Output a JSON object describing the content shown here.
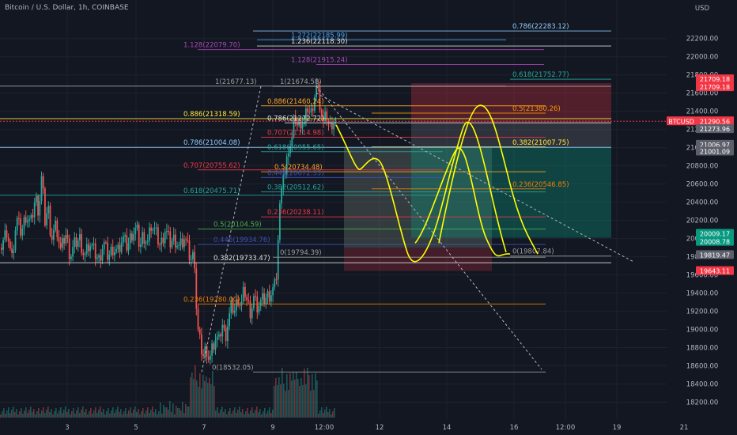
{
  "title": "Bitcoin / U.S. Dollar, 1h, COINBASE",
  "currency": "USD",
  "chart_data": {
    "type": "candlestick",
    "symbol": "BTCUSD",
    "ylim": [
      18100,
      22450
    ],
    "y_ticks": [
      "22200.00",
      "22000.00",
      "21800.00",
      "21600.00",
      "21400.00",
      "21200.00",
      "21000.00",
      "20800.00",
      "20600.00",
      "20400.00",
      "20200.00",
      "20000.00",
      "19800.00",
      "19600.00",
      "19400.00",
      "19200.00",
      "19000.00",
      "18800.00",
      "18600.00",
      "18400.00",
      "18200.00"
    ],
    "x_ticks": [
      "3",
      "5",
      "7",
      "9",
      "12:00",
      "12",
      "14",
      "16",
      "12:00",
      "19",
      "21"
    ],
    "price_path": [
      [
        0,
        19900
      ],
      [
        8,
        20100
      ],
      [
        14,
        19750
      ],
      [
        20,
        20200
      ],
      [
        26,
        20050
      ],
      [
        32,
        20250
      ],
      [
        38,
        20150
      ],
      [
        44,
        20450
      ],
      [
        48,
        20300
      ],
      [
        52,
        20700
      ],
      [
        56,
        20200
      ],
      [
        60,
        20350
      ],
      [
        64,
        20000
      ],
      [
        70,
        20150
      ],
      [
        76,
        19850
      ],
      [
        82,
        20050
      ],
      [
        88,
        19800
      ],
      [
        94,
        19950
      ],
      [
        100,
        20000
      ],
      [
        106,
        19800
      ],
      [
        112,
        19950
      ],
      [
        118,
        19850
      ],
      [
        124,
        19750
      ],
      [
        130,
        19950
      ],
      [
        136,
        19800
      ],
      [
        142,
        19900
      ],
      [
        148,
        19850
      ],
      [
        154,
        20000
      ],
      [
        160,
        19900
      ],
      [
        166,
        20050
      ],
      [
        172,
        20100
      ],
      [
        176,
        19900
      ],
      [
        180,
        20050
      ],
      [
        186,
        19950
      ],
      [
        190,
        20150
      ],
      [
        196,
        20050
      ],
      [
        202,
        19900
      ],
      [
        208,
        20100
      ],
      [
        214,
        19950
      ],
      [
        220,
        20000
      ],
      [
        226,
        19900
      ],
      [
        232,
        20000
      ],
      [
        236,
        19900
      ],
      [
        240,
        19750
      ],
      [
        244,
        19800
      ],
      [
        246,
        19700
      ],
      [
        248,
        19050
      ],
      [
        252,
        18850
      ],
      [
        256,
        18700
      ],
      [
        260,
        18800
      ],
      [
        264,
        18650
      ],
      [
        268,
        18800
      ],
      [
        272,
        18900
      ],
      [
        276,
        18850
      ],
      [
        280,
        19050
      ],
      [
        284,
        18900
      ],
      [
        288,
        19100
      ],
      [
        292,
        19250
      ],
      [
        296,
        19200
      ],
      [
        300,
        19350
      ],
      [
        304,
        19250
      ],
      [
        308,
        19450
      ],
      [
        312,
        19300
      ],
      [
        316,
        19200
      ],
      [
        320,
        19350
      ],
      [
        324,
        19250
      ],
      [
        330,
        19300
      ],
      [
        336,
        19350
      ],
      [
        342,
        19400
      ],
      [
        348,
        19500
      ],
      [
        352,
        20200
      ],
      [
        356,
        20750
      ],
      [
        360,
        20700
      ],
      [
        364,
        21000
      ],
      [
        368,
        21050
      ],
      [
        372,
        21350
      ],
      [
        376,
        21200
      ],
      [
        380,
        21300
      ],
      [
        384,
        21250
      ],
      [
        388,
        21450
      ],
      [
        392,
        21350
      ],
      [
        396,
        21550
      ],
      [
        400,
        21700
      ],
      [
        404,
        21450
      ],
      [
        408,
        21250
      ],
      [
        412,
        21350
      ],
      [
        416,
        21200
      ],
      [
        420,
        21300
      ],
      [
        424,
        21280
      ]
    ],
    "fibonacci_levels": [
      {
        "label": "1.272(22185.99)",
        "price": 22185.99,
        "color": "#42a5f5"
      },
      {
        "label": "1.236(22118.30)",
        "price": 22118.3,
        "color": "#e0e0e0"
      },
      {
        "label": "1.128(22079.70)",
        "price": 22079.7,
        "color": "#ab47bc"
      },
      {
        "label": "1.128(21915.24)",
        "price": 21915.24,
        "color": "#ab47bc"
      },
      {
        "label": "0.786(22283.12)",
        "price": 22283.12,
        "color": "#90caf9"
      },
      {
        "label": "0.618(21752.77)",
        "price": 21752.77,
        "color": "#26a69a"
      },
      {
        "label": "1(21677.13)",
        "price": 21677.13,
        "color": "#9e9e9e"
      },
      {
        "label": "1(21674.58)",
        "price": 21674.58,
        "color": "#9e9e9e"
      },
      {
        "label": "0.886(21460.24)",
        "price": 21460.24,
        "color": "#ffa726"
      },
      {
        "label": "0.5(21380.26)",
        "price": 21380.26,
        "color": "#ff9800"
      },
      {
        "label": "0.886(21318.59)",
        "price": 21318.59,
        "color": "#ffeb3b"
      },
      {
        "label": "0.786(21272.72)",
        "price": 21272.72,
        "color": "#e0e0e0"
      },
      {
        "label": "0.707(21114.98)",
        "price": 21114.98,
        "color": "#f23645"
      },
      {
        "label": "0.382(21007.75)",
        "price": 21007.75,
        "color": "#ffeb3b"
      },
      {
        "label": "0.786(21004.08)",
        "price": 21004.08,
        "color": "#90caf9"
      },
      {
        "label": "0.618(20955.65)",
        "price": 20955.65,
        "color": "#26a69a"
      },
      {
        "label": "0.707(20755.62)",
        "price": 20755.62,
        "color": "#f23645"
      },
      {
        "label": "0.5(20734.48)",
        "price": 20734.48,
        "color": "#ffa726"
      },
      {
        "label": "0.446(20672.33)",
        "price": 20672.33,
        "color": "#3f51b5"
      },
      {
        "label": "0.236(20546.85)",
        "price": 20546.85,
        "color": "#f57c00"
      },
      {
        "label": "0.382(20512.62)",
        "price": 20512.62,
        "color": "#26a69a"
      },
      {
        "label": "0.618(20475.71)",
        "price": 20475.71,
        "color": "#26a69a"
      },
      {
        "label": "0.236(20238.11)",
        "price": 20238.11,
        "color": "#f23645"
      },
      {
        "label": "0.5(20104.59)",
        "price": 20104.59,
        "color": "#4caf50"
      },
      {
        "label": "0.446(19934.76)",
        "price": 19934.76,
        "color": "#3f51b5"
      },
      {
        "label": "0(19807.84)",
        "price": 19807.84,
        "color": "#9e9e9e"
      },
      {
        "label": "0(19794.39)",
        "price": 19794.39,
        "color": "#9e9e9e"
      },
      {
        "label": "0.382(19733.47)",
        "price": 19733.47,
        "color": "#e0e0e0"
      },
      {
        "label": "0.236(19280.00)",
        "price": 19280.0,
        "color": "#f57c00"
      },
      {
        "label": "0(18532.05)",
        "price": 18532.05,
        "color": "#9e9e9e"
      }
    ],
    "price_labels": [
      {
        "text": "21709.18",
        "bg": "#f23645",
        "fg": "#ffffff"
      },
      {
        "text": "21709.18",
        "bg": "#f23645",
        "fg": "#ffffff"
      },
      {
        "text": "BTCUSD",
        "bg": "#f23645",
        "fg": "#ffffff"
      },
      {
        "text": "21290.56",
        "bg": "#f23645",
        "fg": "#ffffff"
      },
      {
        "text": "21273.96",
        "bg": "#5d606b",
        "fg": "#ffffff"
      },
      {
        "text": "21006.97",
        "bg": "#5d606b",
        "fg": "#ffffff"
      },
      {
        "text": "21001.09",
        "bg": "#5d606b",
        "fg": "#ffffff"
      },
      {
        "text": "20009.17",
        "bg": "#089981",
        "fg": "#ffffff"
      },
      {
        "text": "20008.78",
        "bg": "#089981",
        "fg": "#ffffff"
      },
      {
        "text": "19819.47",
        "bg": "#5d606b",
        "fg": "#ffffff"
      },
      {
        "text": "19643.11",
        "bg": "#f23645",
        "fg": "#ffffff"
      }
    ],
    "colors": {
      "up": "#26a69a",
      "down": "#ef5350",
      "background": "#131722",
      "grid": "#1e222d",
      "axis_text": "#b2b5be",
      "drawing": "#ffff00"
    }
  }
}
